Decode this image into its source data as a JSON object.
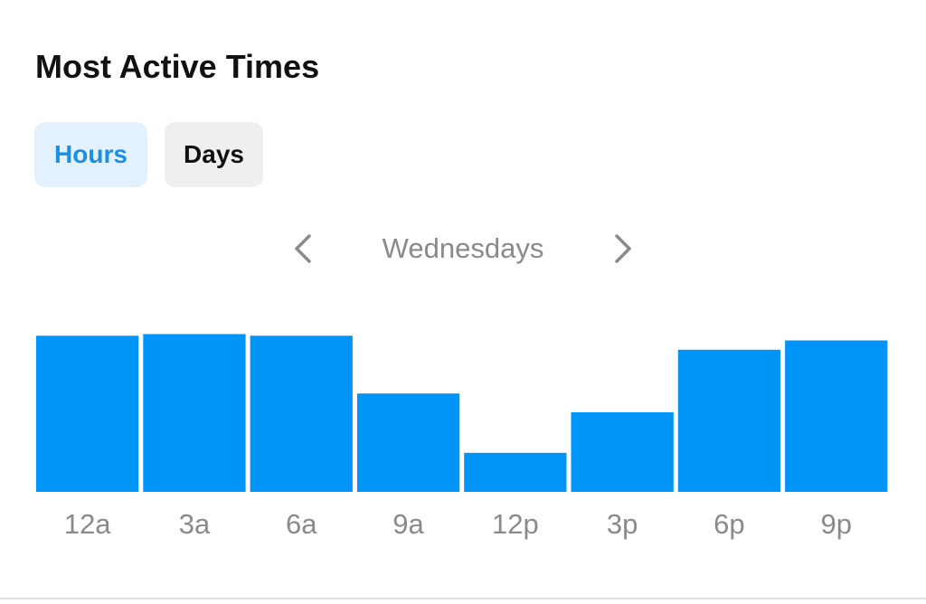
{
  "header": {
    "title": "Most Active Times"
  },
  "tabs": [
    {
      "label": "Hours",
      "active": true
    },
    {
      "label": "Days",
      "active": false
    }
  ],
  "day_selector": {
    "label": "Wednesdays",
    "prev_icon": "chevron-left-icon",
    "next_icon": "chevron-right-icon"
  },
  "colors": {
    "bar": "#0095f6",
    "tick_label": "#8a8a8a",
    "active_tab_text": "#1a8fe3",
    "active_tab_bg": "#e2f1fd",
    "inactive_tab_bg": "#efefef"
  },
  "chart_data": {
    "type": "bar",
    "title": "",
    "xlabel": "",
    "ylabel": "",
    "categories": [
      "12a",
      "3a",
      "6a",
      "9a",
      "12p",
      "3p",
      "6p",
      "9p"
    ],
    "values": [
      100,
      101,
      100,
      63,
      25,
      51,
      91,
      97
    ],
    "ylim": [
      0,
      110
    ],
    "grid": false,
    "legend": "none"
  }
}
